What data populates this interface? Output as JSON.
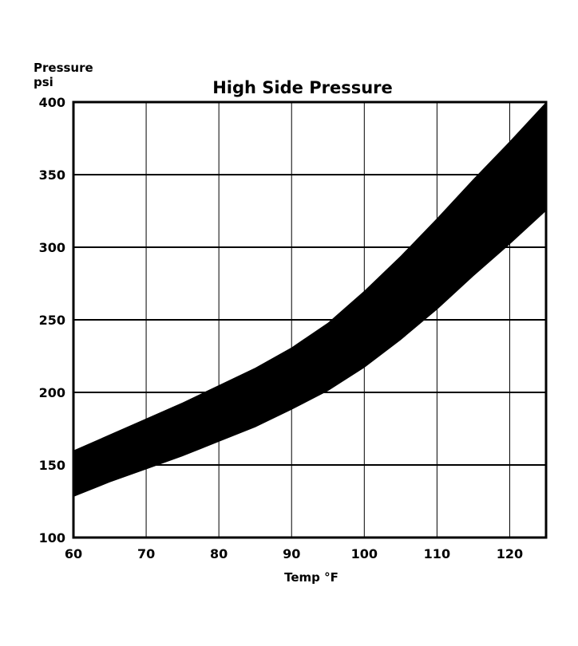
{
  "chart_data": {
    "type": "area",
    "title": "High Side Pressure",
    "ylabel_line1": "Pressure",
    "ylabel_line2": "psi",
    "xlabel": "Temp °F",
    "xlim": [
      60,
      125
    ],
    "ylim": [
      100,
      400
    ],
    "x_ticks": [
      60,
      70,
      80,
      90,
      100,
      110,
      120
    ],
    "y_ticks": [
      100,
      150,
      200,
      250,
      300,
      350,
      400
    ],
    "grid": true,
    "legend": "none",
    "band_color": "#000000",
    "series": [
      {
        "x": [
          60,
          65,
          70,
          75,
          80,
          85,
          90,
          95,
          100,
          105,
          110,
          115,
          120,
          125
        ],
        "upper": [
          160,
          171,
          182,
          193,
          205,
          217,
          231,
          248,
          270,
          294,
          320,
          347,
          373,
          400
        ],
        "lower": [
          128,
          138,
          147,
          156,
          166,
          176,
          188,
          201,
          217,
          236,
          257,
          280,
          302,
          325
        ]
      }
    ]
  }
}
